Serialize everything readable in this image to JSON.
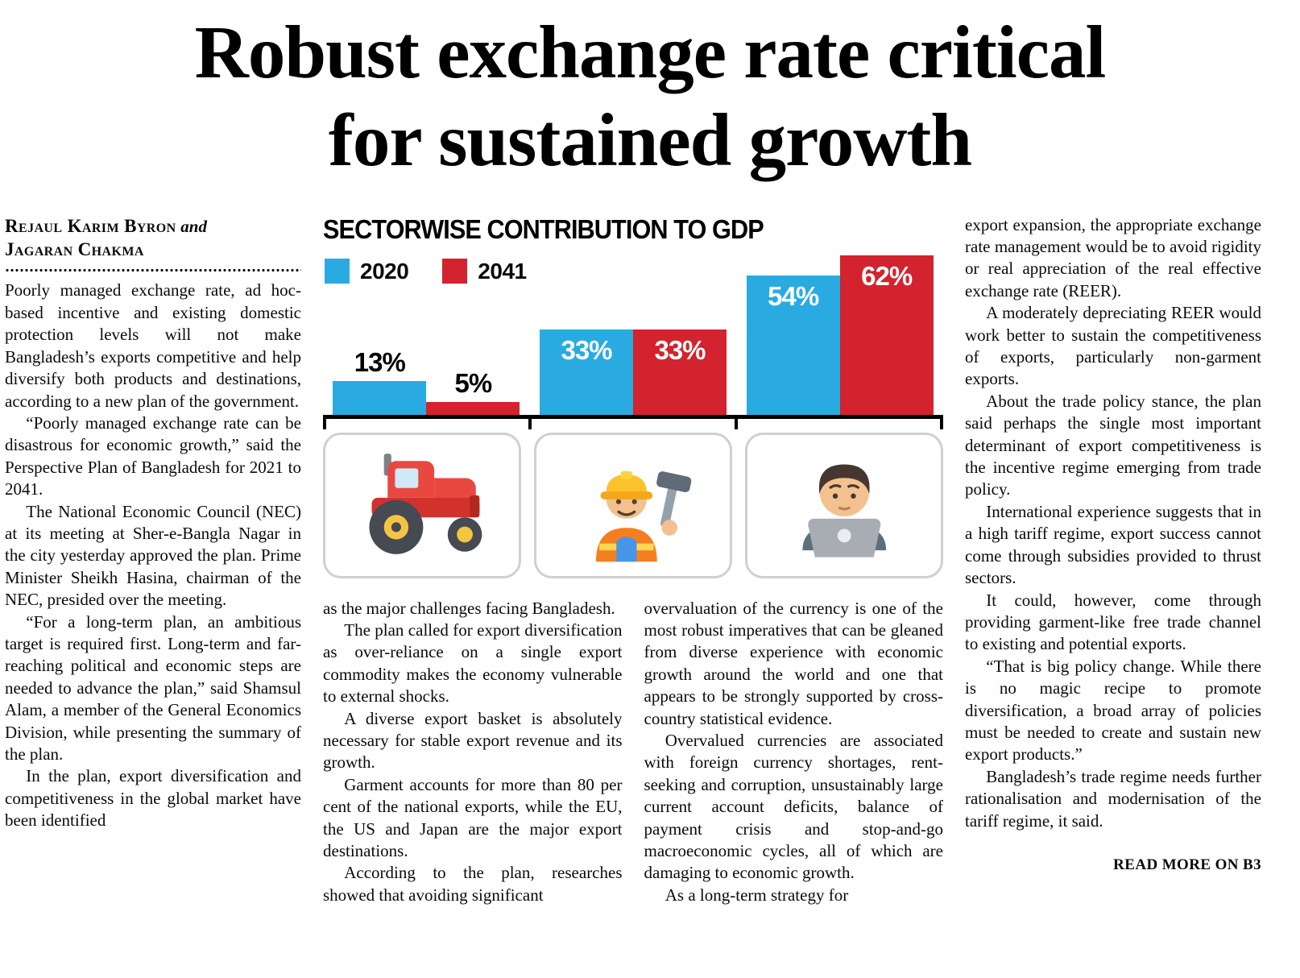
{
  "article": {
    "headline": "Robust exchange rate critical for sustained growth",
    "headline_lines": [
      "Robust exchange rate critical",
      "for sustained growth"
    ],
    "byline": {
      "author_1": "Rejaul Karim Byron",
      "connector": "and",
      "author_2": "Jagaran Chakma"
    },
    "columns": {
      "left": [
        "Poorly managed exchange rate, ad hoc-based incentive and existing domestic protection levels will not make Bangladesh’s exports competitive and help diversify both products and destinations, according to a new plan of the government.",
        "“Poorly managed exchange rate can be disastrous for economic growth,” said the Perspective Plan of Bangladesh for 2021 to 2041.",
        "The National Economic Council (NEC) at its meeting at Sher-e-Bangla Nagar in the city yesterday approved the plan. Prime Minister Sheikh Hasina, chairman of the NEC, presided over the meeting.",
        "“For a long-term plan, an ambitious target is required first. Long-term and far-reaching political and economic steps are needed to advance the plan,” said Shamsul Alam, a member of the General Economics Division, while presenting the summary of the plan.",
        "In the plan, export diversification and competitiveness in the global market have been identified"
      ],
      "mid_1": [
        "as the major challenges facing Bangladesh.",
        "The plan called for export diversification as over-reliance on a single export commodity makes the economy vulnerable to external shocks.",
        "A diverse export basket is absolutely necessary for stable export revenue and its growth.",
        "Garment accounts for more than 80 per cent of the national exports, while the EU, the US and Japan are the major export destinations.",
        "According to the plan, researches showed that avoiding significant"
      ],
      "mid_2": [
        "overvaluation of the currency is one of the most robust imperatives that can be gleaned from diverse experience with economic growth around the world and one that appears to be strongly supported by cross-country statistical evidence.",
        "Overvalued currencies are associated with foreign currency shortages, rent-seeking and corruption, unsustainably large current account deficits, balance of payment crisis and stop-and-go macroeconomic cycles, all of which are damaging to economic growth.",
        "As a long-term strategy for"
      ],
      "right": [
        "export expansion, the appropriate exchange rate management would be to avoid rigidity or real appreciation of the real effective exchange rate (REER).",
        "A moderately depreciating REER would work better to sustain the competitiveness of exports, particularly non-garment exports.",
        "About the trade policy stance, the plan said perhaps the single most important determinant of export competitiveness is the incentive regime emerging from trade policy.",
        "International experience suggests that in a high tariff regime, export success cannot come through subsidies provided to thrust sectors.",
        "It could, however, come through providing garment-like free trade channel to existing and potential exports.",
        "“That is big policy change. While there is no magic recipe to promote diversification, a broad array of policies must be needed to create and sustain new export products.”",
        "Bangladesh’s trade regime needs further rationalisation and modernisation of the tariff regime, it said."
      ]
    },
    "read_more": "READ MORE ON B3"
  },
  "chart_data": {
    "type": "bar",
    "title": "SECTORWISE CONTRIBUTION TO GDP",
    "unit": "%",
    "categories": [
      "agriculture",
      "industry",
      "services"
    ],
    "category_icons": [
      "tractor-icon",
      "construction-worker-icon",
      "technologist-icon"
    ],
    "series": [
      {
        "name": "2020",
        "color": "#29abe2",
        "values": [
          13,
          33,
          54
        ]
      },
      {
        "name": "2041",
        "color": "#d2232e",
        "values": [
          5,
          33,
          62
        ]
      }
    ],
    "ylim": [
      0,
      65
    ],
    "legend_position": "top-left",
    "grid": false,
    "value_labels": true
  }
}
